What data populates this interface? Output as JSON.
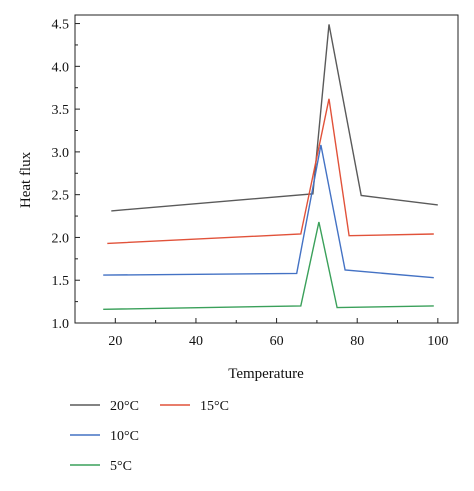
{
  "chart_data": {
    "type": "line",
    "title": "",
    "xlabel": "Temperature",
    "ylabel": "Heat flux",
    "xlim": [
      10,
      105
    ],
    "ylim": [
      1.0,
      4.6
    ],
    "x_ticks": [
      20,
      40,
      60,
      80,
      100
    ],
    "y_ticks": [
      1.0,
      1.5,
      2.0,
      2.5,
      3.0,
      3.5,
      4.0,
      4.5
    ],
    "grid": false,
    "legend_position": "bottom",
    "series": [
      {
        "name": "20°C",
        "color": "#5a5a5a",
        "points": [
          [
            19,
            2.31
          ],
          [
            69,
            2.51
          ],
          [
            73,
            4.49
          ],
          [
            81,
            2.49
          ],
          [
            100,
            2.38
          ]
        ]
      },
      {
        "name": "15°C",
        "color": "#e1523a",
        "points": [
          [
            18,
            1.93
          ],
          [
            66,
            2.04
          ],
          [
            73,
            3.62
          ],
          [
            78,
            2.02
          ],
          [
            99,
            2.04
          ]
        ]
      },
      {
        "name": "10°C",
        "color": "#4472c4",
        "points": [
          [
            17,
            1.56
          ],
          [
            65,
            1.58
          ],
          [
            71,
            3.08
          ],
          [
            77,
            1.62
          ],
          [
            99,
            1.53
          ]
        ]
      },
      {
        "name": "5°C",
        "color": "#3aa05a",
        "points": [
          [
            17,
            1.16
          ],
          [
            66,
            1.2
          ],
          [
            70.5,
            2.18
          ],
          [
            75,
            1.18
          ],
          [
            99,
            1.2
          ]
        ]
      }
    ]
  }
}
